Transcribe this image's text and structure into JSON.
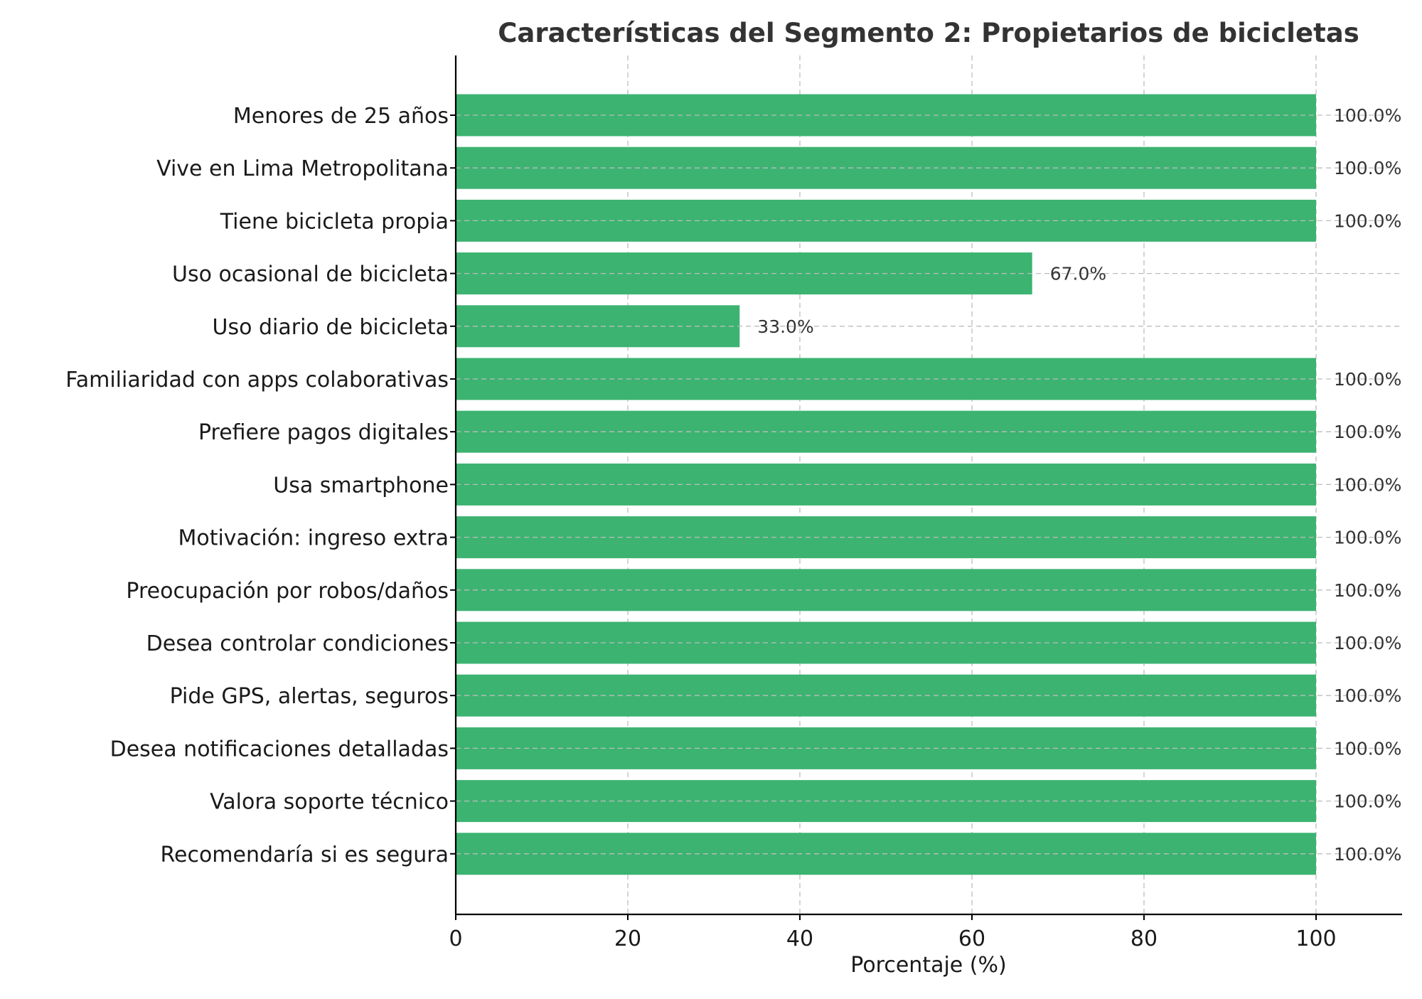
{
  "chart_data": {
    "type": "bar",
    "orientation": "horizontal",
    "title": "Características del Segmento 2: Propietarios de bicicletas",
    "xlabel": "Porcentaje (%)",
    "ylabel": "",
    "xlim": [
      0,
      110
    ],
    "xticks": [
      0,
      20,
      40,
      60,
      80,
      100
    ],
    "xtick_labels": [
      "0",
      "20",
      "40",
      "60",
      "80",
      "100"
    ],
    "grid": true,
    "bar_color": "#3cb371",
    "categories": [
      "Menores de 25 años",
      "Vive en Lima Metropolitana",
      "Tiene bicicleta propia",
      "Uso ocasional de bicicleta",
      "Uso diario de bicicleta",
      "Familiaridad con apps colaborativas",
      "Prefiere pagos digitales",
      "Usa smartphone",
      "Motivación: ingreso extra",
      "Preocupación por robos/daños",
      "Desea controlar condiciones",
      "Pide GPS, alertas, seguros",
      "Desea notificaciones detalladas",
      "Valora soporte técnico",
      "Recomendaría si es segura"
    ],
    "values": [
      100,
      100,
      100,
      67,
      33,
      100,
      100,
      100,
      100,
      100,
      100,
      100,
      100,
      100,
      100
    ],
    "data_labels": [
      "100.0%",
      "100.0%",
      "100.0%",
      "67.0%",
      "33.0%",
      "100.0%",
      "100.0%",
      "100.0%",
      "100.0%",
      "100.0%",
      "100.0%",
      "100.0%",
      "100.0%",
      "100.0%",
      "100.0%"
    ]
  }
}
